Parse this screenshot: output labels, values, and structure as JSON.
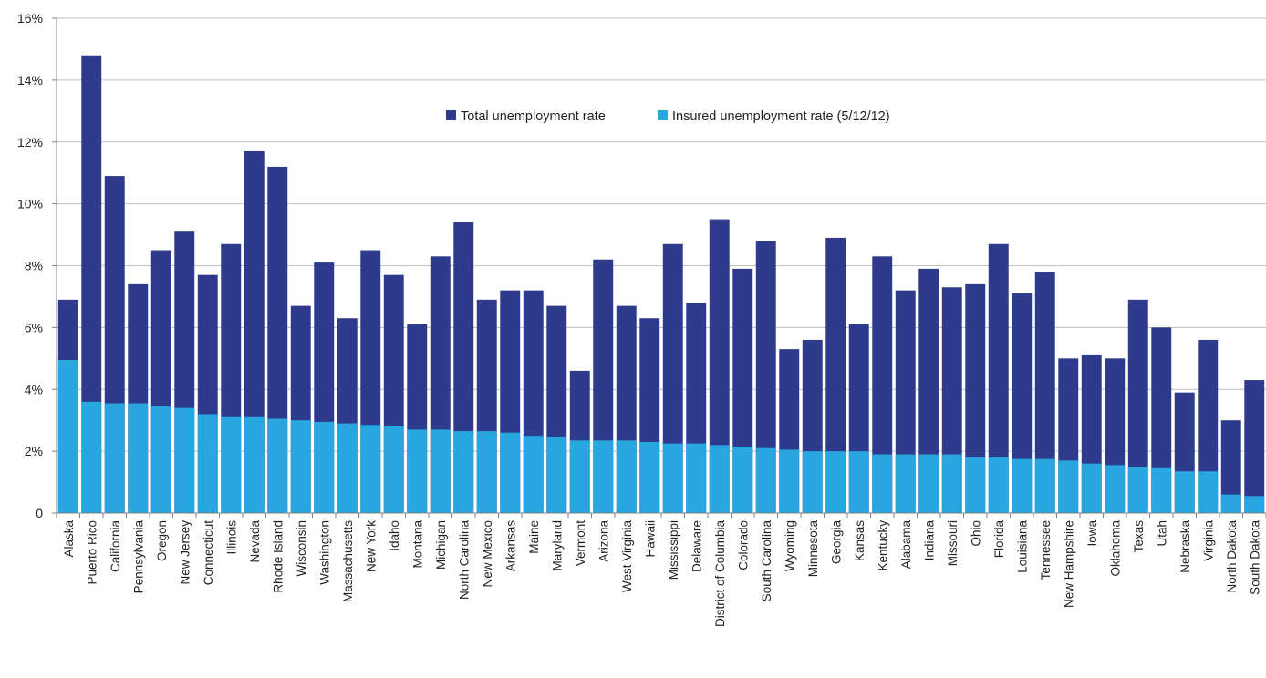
{
  "chart_data": {
    "type": "bar",
    "stacked": "overlay",
    "ylim": [
      0,
      16
    ],
    "y_ticks": [
      "0",
      "2%",
      "4%",
      "6%",
      "8%",
      "10%",
      "12%",
      "14%",
      "16%"
    ],
    "y_tick_values": [
      0,
      2,
      4,
      6,
      8,
      10,
      12,
      14,
      16
    ],
    "grid": true,
    "legend_position": "top-center",
    "colors": {
      "total": "#2e3a8c",
      "insured": "#27a6e0",
      "grid": "#c0c0c0",
      "axis": "#808080"
    },
    "categories": [
      "Alaska",
      "Puerto Rico",
      "California",
      "Pennsylvania",
      "Oregon",
      "New Jersey",
      "Connecticut",
      "Illinois",
      "Nevada",
      "Rhode Island",
      "Wisconsin",
      "Washington",
      "Massachusetts",
      "New York",
      "Idaho",
      "Montana",
      "Michigan",
      "North Carolina",
      "New Mexico",
      "Arkansas",
      "Maine",
      "Maryland",
      "Vermont",
      "Arizona",
      "West Virginia",
      "Hawaii",
      "Mississippi",
      "Delaware",
      "District of Columbia",
      "Colorado",
      "South Carolina",
      "Wyoming",
      "Minnesota",
      "Georgia",
      "Kansas",
      "Kentucky",
      "Alabama",
      "Indiana",
      "Missouri",
      "Ohio",
      "Florida",
      "Louisiana",
      "Tennessee",
      "New Hampshire",
      "Iowa",
      "Oklahoma",
      "Texas",
      "Utah",
      "Nebraska",
      "Virginia",
      "North Dakota",
      "South Dakota"
    ],
    "series": [
      {
        "name": "Total unemployment rate",
        "color": "#2e3a8c",
        "values": [
          6.9,
          14.8,
          10.9,
          7.4,
          8.5,
          9.1,
          7.7,
          8.7,
          11.7,
          11.2,
          6.7,
          8.1,
          6.3,
          8.5,
          7.7,
          6.1,
          8.3,
          9.4,
          6.9,
          7.2,
          7.2,
          6.7,
          4.6,
          8.2,
          6.7,
          6.3,
          8.7,
          6.8,
          9.5,
          7.9,
          8.8,
          5.3,
          5.6,
          8.9,
          6.1,
          8.3,
          7.2,
          7.9,
          7.3,
          7.4,
          8.7,
          7.1,
          7.8,
          5.0,
          5.1,
          5.0,
          6.9,
          6.0,
          3.9,
          5.6,
          3.0,
          4.3
        ]
      },
      {
        "name": "Insured unemployment rate (5/12/12)",
        "color": "#27a6e0",
        "values": [
          4.95,
          3.6,
          3.55,
          3.55,
          3.45,
          3.4,
          3.2,
          3.1,
          3.1,
          3.05,
          3.0,
          2.95,
          2.9,
          2.85,
          2.8,
          2.7,
          2.7,
          2.65,
          2.65,
          2.6,
          2.5,
          2.45,
          2.35,
          2.35,
          2.35,
          2.3,
          2.25,
          2.25,
          2.2,
          2.15,
          2.1,
          2.05,
          2.0,
          2.0,
          2.0,
          1.9,
          1.9,
          1.9,
          1.9,
          1.8,
          1.8,
          1.75,
          1.75,
          1.7,
          1.6,
          1.55,
          1.5,
          1.45,
          1.35,
          1.35,
          0.6,
          0.55
        ]
      }
    ]
  }
}
